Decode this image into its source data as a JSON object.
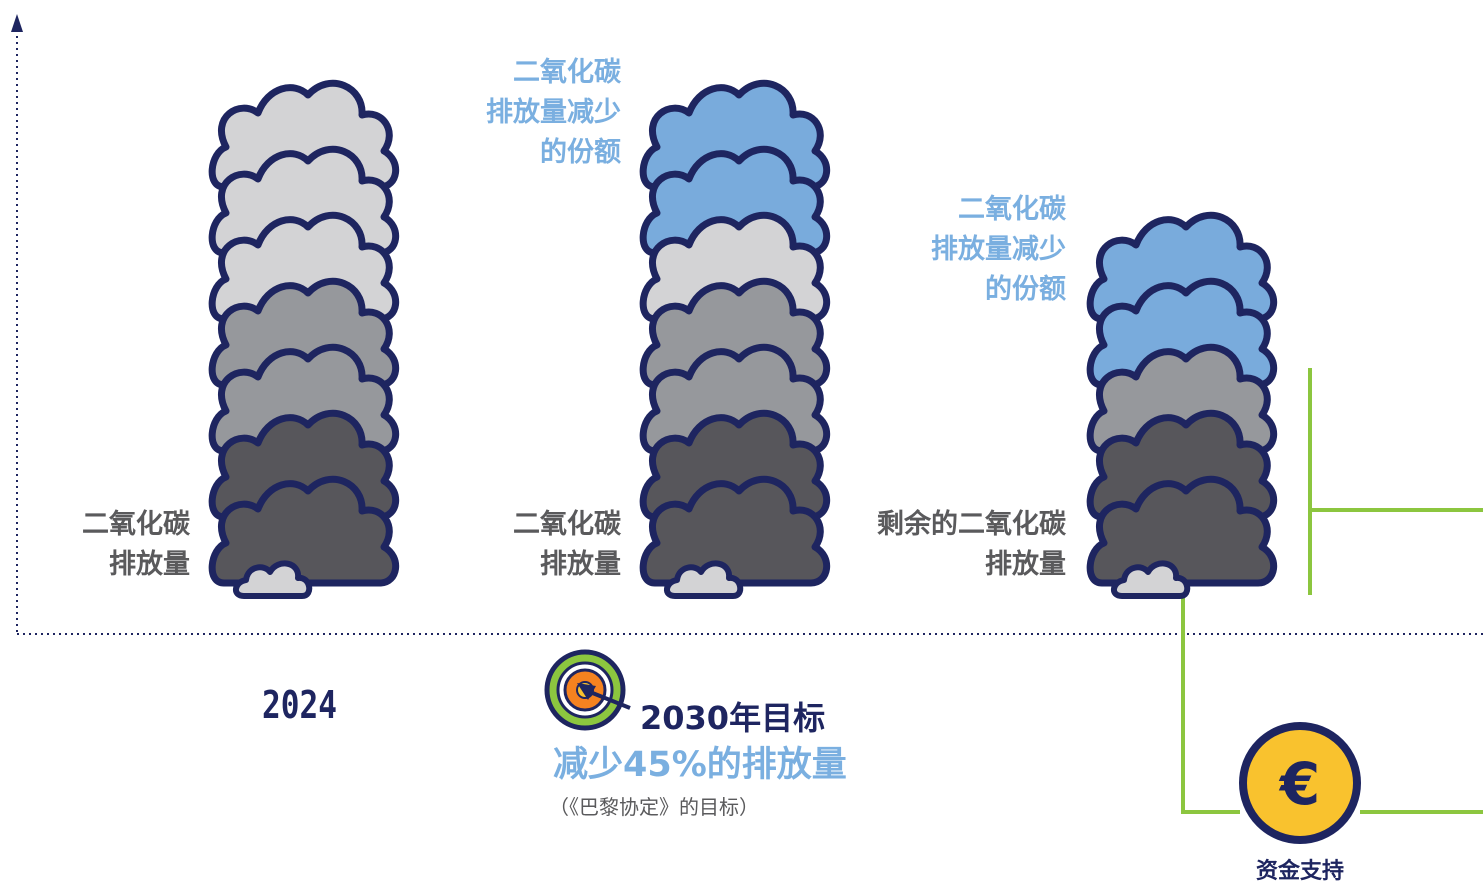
{
  "columns": [
    {
      "clouds": [
        "light",
        "light",
        "light",
        "mid",
        "mid",
        "dark",
        "dark"
      ],
      "top_label": [],
      "bottom_label": [
        "二氧化碳",
        "排放量"
      ]
    },
    {
      "clouds": [
        "blue",
        "blue",
        "light",
        "mid",
        "mid",
        "dark",
        "dark"
      ],
      "top_label": [
        "二氧化碳",
        "排放量减少",
        "的份额"
      ],
      "bottom_label": [
        "二氧化碳",
        "排放量"
      ]
    },
    {
      "clouds": [
        "blue",
        "blue",
        "mid",
        "dark",
        "dark"
      ],
      "top_label": [
        "二氧化碳",
        "排放量减少",
        "的份额"
      ],
      "bottom_label": [
        "剩余的二氧化碳",
        "排放量"
      ]
    }
  ],
  "year_label": "2024",
  "target_label": "2030年目标",
  "reduction_label": "减少45%的排放量",
  "paris_note": "（《巴黎协定》的目标）",
  "funding_label": "资金支持",
  "funding_symbol": "€",
  "colors": {
    "outline": "#1e2560",
    "cloud_light": "#d3d3d5",
    "cloud_mid": "#96989c",
    "cloud_dark": "#57565b",
    "cloud_blue": "#79abdc",
    "accent_green": "#8cc63f",
    "coin_yellow": "#f9c22e",
    "text_gray": "#5a5a5c",
    "text_blue": "#7aafe0",
    "target_orange": "#f58220"
  }
}
